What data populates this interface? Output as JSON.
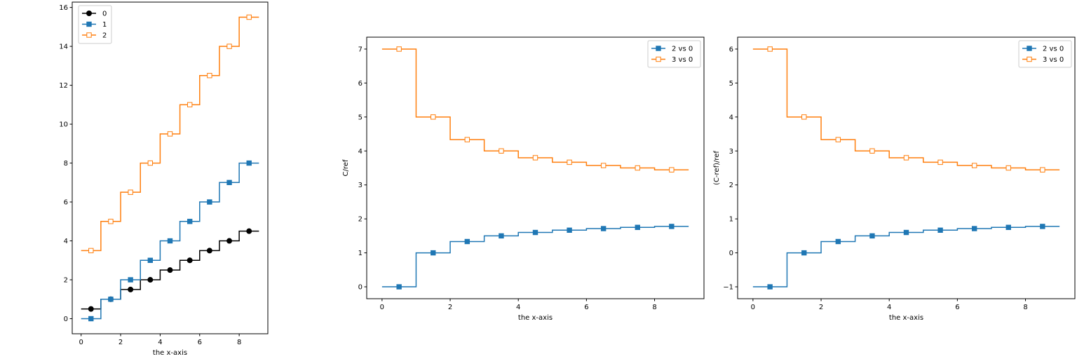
{
  "chart_data": [
    {
      "type": "line",
      "step": "post",
      "title": "",
      "xlabel": "the x-axis",
      "ylabel": "",
      "xlim": [
        -0.45,
        9.45
      ],
      "ylim": [
        -0.775,
        16.275
      ],
      "xticks": [
        0,
        2,
        4,
        6,
        8
      ],
      "yticks": [
        0,
        2,
        4,
        6,
        8,
        10,
        12,
        14,
        16
      ],
      "legend": "top-left",
      "grid": false,
      "x": [
        0,
        1,
        2,
        3,
        4,
        5,
        6,
        7,
        8,
        9
      ],
      "marker_x": [
        0.5,
        1.5,
        2.5,
        3.5,
        4.5,
        5.5,
        6.5,
        7.5,
        8.5
      ],
      "series": [
        {
          "name": "0",
          "color": "#000000",
          "marker": "circle-filled",
          "values": [
            0.5,
            1.0,
            1.5,
            2.0,
            2.5,
            3.0,
            3.5,
            4.0,
            4.5,
            4.5
          ]
        },
        {
          "name": "1",
          "color": "#1f77b4",
          "marker": "square-filled",
          "values": [
            0,
            1,
            2,
            3,
            4,
            5,
            6,
            7,
            8,
            8
          ]
        },
        {
          "name": "2",
          "color": "#ff7f0e",
          "marker": "square-open",
          "values": [
            3.5,
            5.0,
            6.5,
            8.0,
            9.5,
            11.0,
            12.5,
            14.0,
            15.5,
            15.5
          ]
        }
      ]
    },
    {
      "type": "line",
      "step": "post",
      "title": "",
      "xlabel": "the x-axis",
      "ylabel": "C/ref",
      "xlim": [
        -0.45,
        9.45
      ],
      "ylim": [
        -0.35,
        7.35
      ],
      "xticks": [
        0,
        2,
        4,
        6,
        8
      ],
      "yticks": [
        0,
        1,
        2,
        3,
        4,
        5,
        6,
        7
      ],
      "legend": "top-right",
      "grid": false,
      "x": [
        0,
        1,
        2,
        3,
        4,
        5,
        6,
        7,
        8,
        9
      ],
      "marker_x": [
        0.5,
        1.5,
        2.5,
        3.5,
        4.5,
        5.5,
        6.5,
        7.5,
        8.5
      ],
      "series": [
        {
          "name": "2 vs 0",
          "color": "#1f77b4",
          "marker": "square-filled",
          "values": [
            0,
            1.0,
            1.333,
            1.5,
            1.6,
            1.667,
            1.714,
            1.75,
            1.778,
            1.778
          ]
        },
        {
          "name": "3 vs 0",
          "color": "#ff7f0e",
          "marker": "square-open",
          "values": [
            7.0,
            5.0,
            4.333,
            4.0,
            3.8,
            3.667,
            3.571,
            3.5,
            3.444,
            3.444
          ]
        }
      ]
    },
    {
      "type": "line",
      "step": "post",
      "title": "",
      "xlabel": "the x-axis",
      "ylabel": "(C-ref)/ref",
      "xlim": [
        -0.45,
        9.45
      ],
      "ylim": [
        -1.35,
        6.35
      ],
      "xticks": [
        0,
        2,
        4,
        6,
        8
      ],
      "yticks": [
        -1,
        0,
        1,
        2,
        3,
        4,
        5,
        6
      ],
      "legend": "top-right",
      "grid": false,
      "x": [
        0,
        1,
        2,
        3,
        4,
        5,
        6,
        7,
        8,
        9
      ],
      "marker_x": [
        0.5,
        1.5,
        2.5,
        3.5,
        4.5,
        5.5,
        6.5,
        7.5,
        8.5
      ],
      "series": [
        {
          "name": "2 vs 0",
          "color": "#1f77b4",
          "marker": "square-filled",
          "values": [
            -1,
            0,
            0.333,
            0.5,
            0.6,
            0.667,
            0.714,
            0.75,
            0.778,
            0.778
          ]
        },
        {
          "name": "3 vs 0",
          "color": "#ff7f0e",
          "marker": "square-open",
          "values": [
            6.0,
            4.0,
            3.333,
            3.0,
            2.8,
            2.667,
            2.571,
            2.5,
            2.444,
            2.444
          ]
        }
      ]
    }
  ]
}
